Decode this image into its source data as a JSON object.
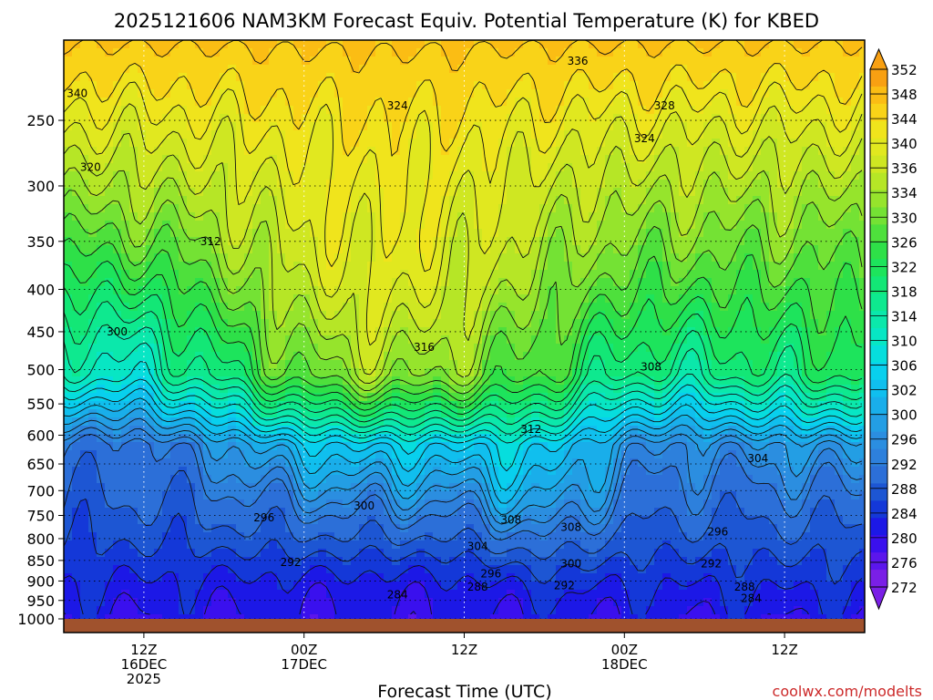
{
  "chart_data": {
    "type": "heatmap",
    "title": "2025121606 NAM3KM Forecast Equiv. Potential Temperature (K) for KBED",
    "xlabel": "Forecast Time (UTC)",
    "ylabel": "",
    "credit": "coolwx.com/modelts",
    "y_axis": {
      "scale": "log-pressure",
      "range_hPa": [
        1000,
        200
      ],
      "tick_labels": [
        "250",
        "300",
        "350",
        "400",
        "450",
        "500",
        "550",
        "600",
        "650",
        "700",
        "750",
        "800",
        "850",
        "900",
        "950",
        "1000"
      ],
      "tick_values": [
        250,
        300,
        350,
        400,
        450,
        500,
        550,
        600,
        650,
        700,
        750,
        800,
        850,
        900,
        950,
        1000
      ]
    },
    "x_axis": {
      "range_hours": [
        0,
        60
      ],
      "ticks": [
        {
          "hour": 6,
          "label": "12Z",
          "label2": "16DEC",
          "label3": "2025"
        },
        {
          "hour": 18,
          "label": "00Z",
          "label2": "17DEC",
          "label3": ""
        },
        {
          "hour": 30,
          "label": "12Z",
          "label2": "",
          "label3": ""
        },
        {
          "hour": 42,
          "label": "00Z",
          "label2": "18DEC",
          "label3": ""
        },
        {
          "hour": 54,
          "label": "12Z",
          "label2": "",
          "label3": ""
        }
      ]
    },
    "grid": "dotted",
    "colorbar": {
      "placement": "right",
      "levels": [
        272,
        276,
        280,
        284,
        288,
        292,
        296,
        300,
        302,
        304,
        306,
        308,
        310,
        312,
        314,
        316,
        318,
        320,
        322,
        324,
        326,
        328,
        330,
        332,
        334,
        336,
        338,
        340,
        344,
        348,
        352
      ],
      "tick_labels": [
        "352",
        "348",
        "344",
        "340",
        "336",
        "334",
        "330",
        "326",
        "322",
        "318",
        "314",
        "310",
        "306",
        "302",
        "300",
        "296",
        "292",
        "288",
        "284",
        "280",
        "276",
        "272"
      ]
    },
    "contour_labels": [
      {
        "text": "336",
        "hour": 38.5,
        "p": 212
      },
      {
        "text": "340",
        "hour": 1.0,
        "p": 232
      },
      {
        "text": "324",
        "hour": 25.0,
        "p": 240
      },
      {
        "text": "328",
        "hour": 45.0,
        "p": 240
      },
      {
        "text": "324",
        "hour": 43.5,
        "p": 263
      },
      {
        "text": "320",
        "hour": 2.0,
        "p": 285
      },
      {
        "text": "312",
        "hour": 11.0,
        "p": 350
      },
      {
        "text": "300",
        "hour": 4.0,
        "p": 450
      },
      {
        "text": "316",
        "hour": 27.0,
        "p": 470
      },
      {
        "text": "308",
        "hour": 44.0,
        "p": 496
      },
      {
        "text": "312",
        "hour": 35.0,
        "p": 590
      },
      {
        "text": "304",
        "hour": 52.0,
        "p": 640
      },
      {
        "text": "300",
        "hour": 22.5,
        "p": 730
      },
      {
        "text": "296",
        "hour": 15.0,
        "p": 755
      },
      {
        "text": "308",
        "hour": 33.5,
        "p": 760
      },
      {
        "text": "308",
        "hour": 38.0,
        "p": 775
      },
      {
        "text": "296",
        "hour": 49.0,
        "p": 785
      },
      {
        "text": "304",
        "hour": 31.0,
        "p": 818
      },
      {
        "text": "292",
        "hour": 17.0,
        "p": 855
      },
      {
        "text": "300",
        "hour": 38.0,
        "p": 858
      },
      {
        "text": "292",
        "hour": 48.5,
        "p": 858
      },
      {
        "text": "296",
        "hour": 32.0,
        "p": 882
      },
      {
        "text": "292",
        "hour": 37.5,
        "p": 912
      },
      {
        "text": "288",
        "hour": 31.0,
        "p": 915
      },
      {
        "text": "284",
        "hour": 25.0,
        "p": 935
      },
      {
        "text": "288",
        "hour": 51.0,
        "p": 915
      },
      {
        "text": "284",
        "hour": 51.5,
        "p": 945
      }
    ]
  },
  "colors": {
    "ground": "#a0522d",
    "credit": "#cc2a2a"
  }
}
